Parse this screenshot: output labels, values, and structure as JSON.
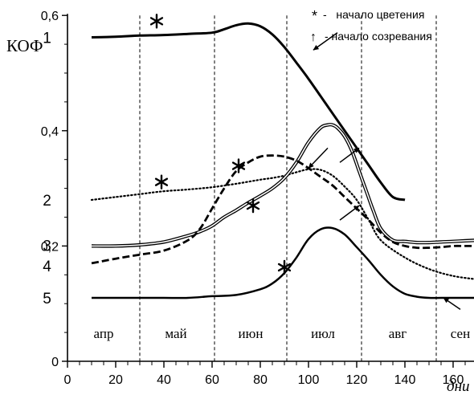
{
  "chart_data": {
    "type": "line",
    "ylabel": "КОФ",
    "xlabel": "дни",
    "xlim": [
      0,
      175
    ],
    "ylim": [
      0,
      0.6
    ],
    "x_ticks": [
      0,
      20,
      40,
      60,
      80,
      100,
      120,
      140,
      160
    ],
    "x_tick_labels": [
      "0",
      "20",
      "40",
      "60",
      "80",
      "100",
      "120",
      "140",
      "160"
    ],
    "y_ticks": [
      0,
      0.2,
      0.4,
      0.6
    ],
    "y_tick_labels": [
      "0",
      "0,2",
      "0,4",
      "0,6"
    ],
    "grid": false,
    "month_boundaries": [
      30,
      61,
      91,
      122,
      153
    ],
    "months": [
      {
        "label": "апр",
        "x": 15
      },
      {
        "label": "май",
        "x": 45
      },
      {
        "label": "июн",
        "x": 76
      },
      {
        "label": "июл",
        "x": 106
      },
      {
        "label": "авг",
        "x": 137
      },
      {
        "label": "сен",
        "x": 163
      }
    ],
    "legend": {
      "placement": "top-right",
      "items": [
        {
          "symbol": "*",
          "text": "-   начало цветения"
        },
        {
          "symbol": "↑",
          "text": "- начало созревания"
        }
      ]
    },
    "series": [
      {
        "name": "1",
        "style": "solid-thick",
        "x": [
          10,
          20,
          30,
          40,
          50,
          60,
          65,
          70,
          75,
          80,
          85,
          90,
          95,
          100,
          105,
          110,
          115,
          120,
          125,
          130,
          135,
          140
        ],
        "y": [
          0.562,
          0.563,
          0.565,
          0.566,
          0.568,
          0.57,
          0.576,
          0.583,
          0.586,
          0.581,
          0.567,
          0.545,
          0.518,
          0.49,
          0.46,
          0.43,
          0.4,
          0.37,
          0.34,
          0.31,
          0.285,
          0.28
        ]
      },
      {
        "name": "2",
        "style": "dotted",
        "x": [
          10,
          20,
          30,
          40,
          50,
          60,
          70,
          80,
          85,
          90,
          95,
          100,
          105,
          110,
          115,
          120,
          125,
          130,
          140,
          150,
          160,
          170
        ],
        "y": [
          0.28,
          0.285,
          0.29,
          0.295,
          0.298,
          0.302,
          0.308,
          0.315,
          0.318,
          0.322,
          0.328,
          0.333,
          0.332,
          0.322,
          0.303,
          0.28,
          0.245,
          0.21,
          0.18,
          0.16,
          0.148,
          0.142
        ]
      },
      {
        "name": "3",
        "style": "double",
        "x": [
          10,
          20,
          30,
          40,
          50,
          55,
          60,
          65,
          70,
          75,
          80,
          85,
          90,
          95,
          100,
          105,
          108,
          110,
          112,
          115,
          118,
          121,
          124,
          127,
          130,
          135,
          140,
          145,
          150,
          155,
          160,
          165,
          170
        ],
        "y": [
          0.2,
          0.2,
          0.202,
          0.207,
          0.218,
          0.225,
          0.235,
          0.25,
          0.262,
          0.275,
          0.287,
          0.3,
          0.318,
          0.345,
          0.38,
          0.405,
          0.41,
          0.41,
          0.405,
          0.39,
          0.365,
          0.33,
          0.295,
          0.26,
          0.23,
          0.21,
          0.208,
          0.206,
          0.206,
          0.207,
          0.208,
          0.209,
          0.21
        ]
      },
      {
        "name": "4",
        "style": "dashed-thick",
        "x": [
          10,
          20,
          30,
          40,
          50,
          55,
          60,
          65,
          70,
          75,
          80,
          85,
          90,
          95,
          100,
          105,
          110,
          115,
          120,
          125,
          130,
          135,
          140,
          145,
          150,
          155,
          160,
          165,
          170
        ],
        "y": [
          0.17,
          0.178,
          0.185,
          0.192,
          0.21,
          0.23,
          0.265,
          0.3,
          0.33,
          0.345,
          0.355,
          0.357,
          0.355,
          0.348,
          0.335,
          0.32,
          0.305,
          0.285,
          0.265,
          0.245,
          0.223,
          0.207,
          0.2,
          0.197,
          0.197,
          0.198,
          0.2,
          0.2,
          0.2
        ]
      },
      {
        "name": "5",
        "style": "solid",
        "x": [
          10,
          20,
          30,
          40,
          50,
          60,
          70,
          80,
          85,
          90,
          95,
          100,
          105,
          110,
          115,
          120,
          125,
          130,
          135,
          140,
          145,
          150,
          155,
          160,
          165,
          170
        ],
        "y": [
          0.11,
          0.11,
          0.11,
          0.11,
          0.11,
          0.113,
          0.115,
          0.125,
          0.135,
          0.153,
          0.18,
          0.212,
          0.229,
          0.231,
          0.22,
          0.198,
          0.175,
          0.15,
          0.13,
          0.117,
          0.112,
          0.11,
          0.11,
          0.11,
          0.11,
          0.11
        ]
      }
    ],
    "series_labels": [
      {
        "text": "1",
        "x": -4.5,
        "y": 0.562
      },
      {
        "text": "2",
        "x": -4.5,
        "y": 0.28
      },
      {
        "text": "3",
        "x": -4.5,
        "y": 0.201
      },
      {
        "text": "4",
        "x": -4.5,
        "y": 0.166
      },
      {
        "text": "5",
        "x": -4.5,
        "y": 0.11
      }
    ],
    "flowering_markers": [
      {
        "series": "1",
        "x": 37,
        "y": 0.59
      },
      {
        "series": "2",
        "x": 39,
        "y": 0.311
      },
      {
        "series": "4",
        "x": 71,
        "y": 0.339
      },
      {
        "series": "3",
        "x": 77,
        "y": 0.27
      },
      {
        "series": "5",
        "x": 90,
        "y": 0.163
      }
    ],
    "ripening_arrows": [
      {
        "series": "1",
        "from": [
          112,
          0.57
        ],
        "to": [
          102,
          0.54
        ]
      },
      {
        "series": "4",
        "from": [
          108,
          0.37
        ],
        "to": [
          100,
          0.335
        ]
      },
      {
        "series": "3",
        "from": [
          113,
          0.345
        ],
        "to": [
          121,
          0.37
        ]
      },
      {
        "series": "2",
        "from": [
          113,
          0.245
        ],
        "to": [
          121,
          0.27
        ]
      },
      {
        "series": "5",
        "from": [
          163,
          0.09
        ],
        "to": [
          156,
          0.11
        ]
      }
    ]
  }
}
